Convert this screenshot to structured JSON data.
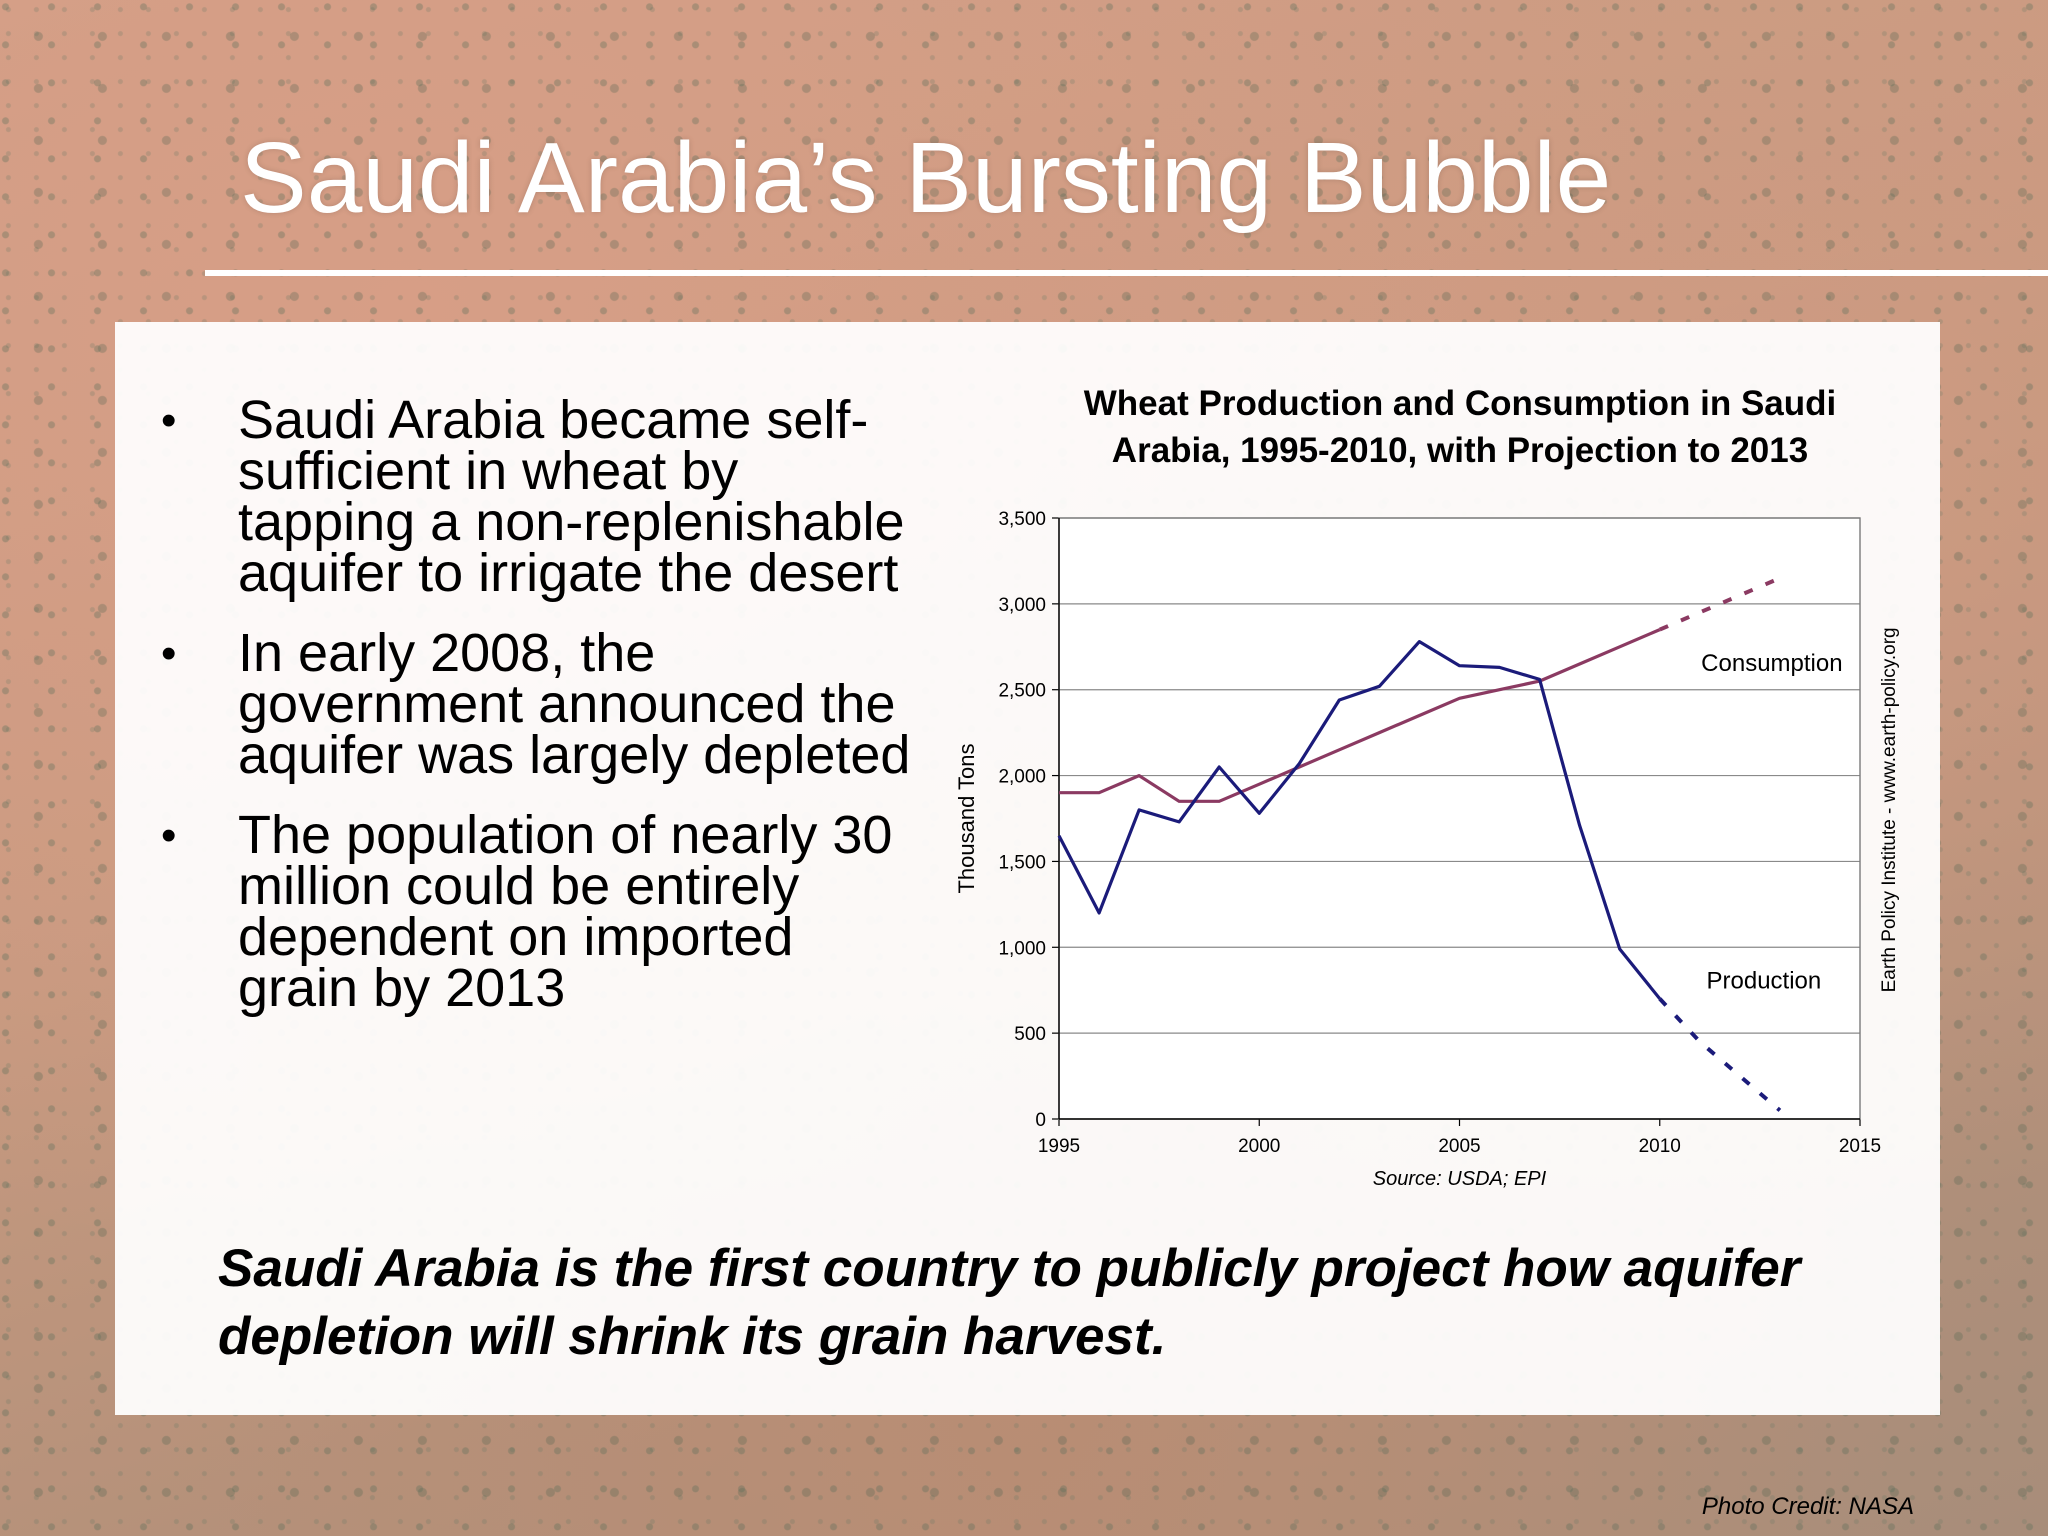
{
  "slide": {
    "title": "Saudi Arabia’s Bursting Bubble",
    "tagline": "Saudi Arabia is the first country to publicly project how aquifer depletion will shrink its grain harvest.",
    "photo_credit": "Photo Credit: NASA",
    "bullets": [
      "Saudi Arabia became self-sufficient in wheat by tapping a non-replenishable aquifer to irrigate the desert",
      "In early 2008, the government announced the aquifer was largely depleted",
      "The population of nearly 30 million could be entirely dependent on imported grain by 2013"
    ],
    "bullet_symbol": "•"
  },
  "chart_data": {
    "type": "line",
    "title": "Wheat Production and Consumption in Saudi Arabia, 1995-2010, with Projection to 2013",
    "xlabel": "",
    "ylabel": "Thousand Tons",
    "xlim": [
      1995,
      2015
    ],
    "ylim": [
      0,
      3500
    ],
    "x_ticks": [
      1995,
      2000,
      2005,
      2010,
      2015
    ],
    "y_ticks": [
      0,
      500,
      1000,
      1500,
      2000,
      2500,
      3000,
      3500
    ],
    "y_tick_labels": [
      "0",
      "500",
      "1,000",
      "1,500",
      "2,000",
      "2,500",
      "3,000",
      "3,500"
    ],
    "grid": "horizontal",
    "source": "Source: USDA; EPI",
    "side_note": "Earth Policy Institute - www.earth-policy.org",
    "series": [
      {
        "name": "Consumption",
        "color": "#8b3a62",
        "points": [
          [
            1995,
            1900
          ],
          [
            1996,
            1900
          ],
          [
            1997,
            2000
          ],
          [
            1998,
            1850
          ],
          [
            1999,
            1850
          ],
          [
            2000,
            1950
          ],
          [
            2001,
            2050
          ],
          [
            2002,
            2150
          ],
          [
            2003,
            2250
          ],
          [
            2004,
            2350
          ],
          [
            2005,
            2450
          ],
          [
            2006,
            2500
          ],
          [
            2007,
            2550
          ],
          [
            2008,
            2650
          ],
          [
            2009,
            2750
          ],
          [
            2010,
            2850
          ]
        ],
        "projection": [
          [
            2010,
            2850
          ],
          [
            2011,
            2950
          ],
          [
            2012,
            3050
          ],
          [
            2013,
            3150
          ]
        ]
      },
      {
        "name": "Production",
        "color": "#1b1b7a",
        "points": [
          [
            1995,
            1650
          ],
          [
            1996,
            1200
          ],
          [
            1997,
            1800
          ],
          [
            1998,
            1730
          ],
          [
            1999,
            2050
          ],
          [
            2000,
            1780
          ],
          [
            2001,
            2070
          ],
          [
            2002,
            2440
          ],
          [
            2003,
            2520
          ],
          [
            2004,
            2780
          ],
          [
            2005,
            2640
          ],
          [
            2006,
            2630
          ],
          [
            2007,
            2560
          ],
          [
            2008,
            1710
          ],
          [
            2009,
            990
          ],
          [
            2010,
            700
          ]
        ],
        "projection": [
          [
            2010,
            700
          ],
          [
            2011,
            450
          ],
          [
            2012,
            250
          ],
          [
            2013,
            50
          ]
        ]
      }
    ]
  }
}
